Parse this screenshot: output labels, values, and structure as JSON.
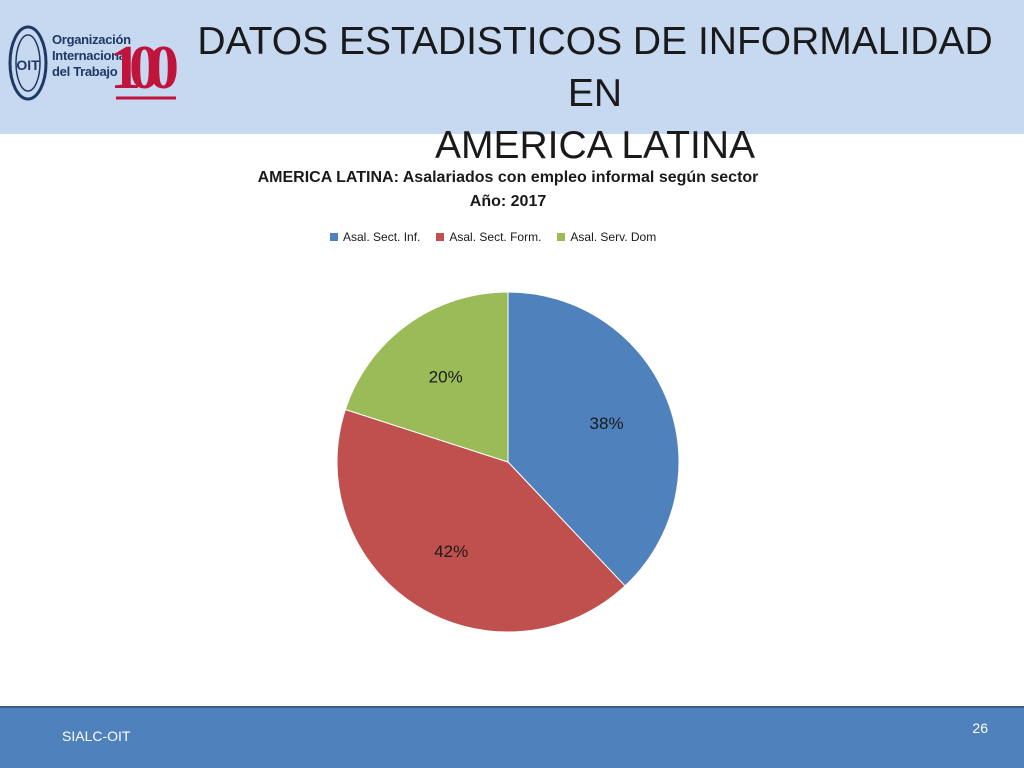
{
  "header": {
    "title_line1": "DATOS ESTADISTICOS DE INFORMALIDAD EN",
    "title_line2": "AMERICA LATINA",
    "logo": {
      "org_line1": "Organización",
      "org_line2": "Internacional",
      "org_line3": "del Trabajo",
      "seal_text": "OIT",
      "anniversary_text": "100"
    }
  },
  "chart_data": {
    "type": "pie",
    "title": "AMERICA LATINA: Asalariados con empleo informal según sector",
    "subtitle": "Año: 2017",
    "legend_position": "top",
    "categories": [
      "Asal. Sect. Inf.",
      "Asal. Sect. Form.",
      "Asal. Serv. Dom"
    ],
    "values": [
      38,
      42,
      20
    ],
    "data_labels": [
      "38%",
      "42%",
      "20%"
    ],
    "colors": [
      "#4f81bd",
      "#c0504d",
      "#9bbb59"
    ]
  },
  "footer": {
    "source": "SIALC-OIT",
    "page_number": "26"
  }
}
